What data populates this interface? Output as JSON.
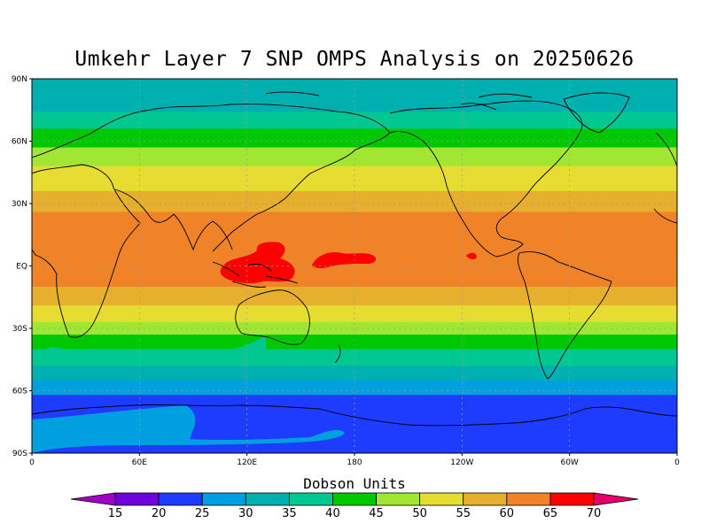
{
  "title": "Umkehr Layer 7 SNP OMPS Analysis on 20250626",
  "map": {
    "lat_ticks": [
      "90N",
      "60N",
      "30N",
      "EQ",
      "30S",
      "60S",
      "90S"
    ],
    "lon_ticks": [
      "0",
      "60E",
      "120E",
      "180",
      "120W",
      "60W",
      "0"
    ],
    "bands": [
      {
        "lat_n": 90,
        "lat_s": 74,
        "value_class": "30-35",
        "color": "#00b0b0"
      },
      {
        "lat_n": 74,
        "lat_s": 66,
        "value_class": "35-40",
        "color": "#00c890"
      },
      {
        "lat_n": 66,
        "lat_s": 57,
        "value_class": "40-45",
        "color": "#00c800"
      },
      {
        "lat_n": 57,
        "lat_s": 48,
        "value_class": "45-50",
        "color": "#a0e632"
      },
      {
        "lat_n": 48,
        "lat_s": 36,
        "value_class": "50-55",
        "color": "#e6dc32"
      },
      {
        "lat_n": 36,
        "lat_s": 26,
        "value_class": "55-60",
        "color": "#e6af2d"
      },
      {
        "lat_n": 26,
        "lat_s": -10,
        "value_class": "60-65",
        "color": "#f08228"
      },
      {
        "lat_n": -10,
        "lat_s": -19,
        "value_class": "55-60",
        "color": "#e6af2d"
      },
      {
        "lat_n": -19,
        "lat_s": -27,
        "value_class": "50-55",
        "color": "#e6dc32"
      },
      {
        "lat_n": -27,
        "lat_s": -33,
        "value_class": "45-50",
        "color": "#a0e632"
      },
      {
        "lat_n": -33,
        "lat_s": -40,
        "value_class": "40-45",
        "color": "#00c800"
      },
      {
        "lat_n": -40,
        "lat_s": -48,
        "value_class": "35-40",
        "color": "#00c890"
      },
      {
        "lat_n": -48,
        "lat_s": -55,
        "value_class": "30-35",
        "color": "#00b0b0"
      },
      {
        "lat_n": -55,
        "lat_s": -62,
        "value_class": "25-30",
        "color": "#00a0e0"
      },
      {
        "lat_n": -62,
        "lat_s": -90,
        "value_class": "20-25",
        "color": "#1e3cff"
      }
    ],
    "maxima_color": "#ff0000",
    "maxima_class": "65-70",
    "coast_color": "#000000"
  },
  "colorbar": {
    "title": "Dobson Units",
    "labels": [
      "15",
      "20",
      "25",
      "30",
      "35",
      "40",
      "45",
      "50",
      "55",
      "60",
      "65",
      "70"
    ],
    "colors": [
      "#a000c8",
      "#6e00dc",
      "#1e3cff",
      "#00a0e0",
      "#00b0b0",
      "#00c890",
      "#00c800",
      "#a0e632",
      "#e6dc32",
      "#e6af2d",
      "#f08228",
      "#ff0000",
      "#e6006e"
    ]
  }
}
